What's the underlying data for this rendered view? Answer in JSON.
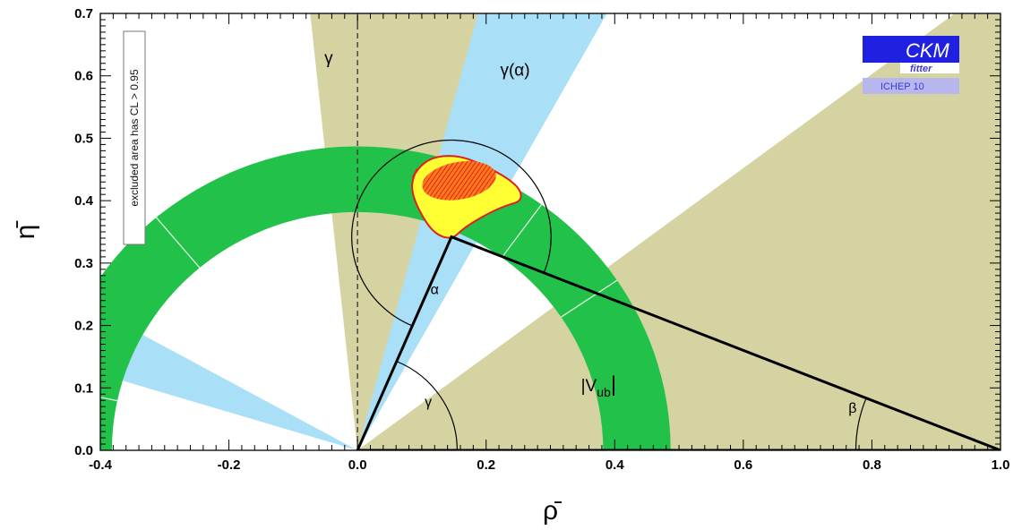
{
  "chart_data": {
    "type": "scatter",
    "title": "",
    "xlabel": "ρ̄",
    "ylabel": "η̄",
    "xlim": [
      -0.4,
      1.0
    ],
    "ylim": [
      0.0,
      0.7
    ],
    "x_ticks": [
      -0.4,
      -0.2,
      0.0,
      0.2,
      0.4,
      0.6,
      0.8,
      1.0
    ],
    "x_tick_labels": [
      "-0.4",
      "-0.2",
      "0.0",
      "0.2",
      "0.4",
      "0.6",
      "0.8",
      "1.0"
    ],
    "y_ticks": [
      0.0,
      0.1,
      0.2,
      0.3,
      0.4,
      0.5,
      0.6,
      0.7
    ],
    "y_tick_labels": [
      "0.0",
      "0.1",
      "0.2",
      "0.3",
      "0.4",
      "0.5",
      "0.6",
      "0.7"
    ],
    "apex": {
      "x": 0.146,
      "y": 0.342
    },
    "constraints": [
      {
        "label": "γ",
        "color": "#d6d3a3",
        "angles_deg": [
          66,
          96
        ],
        "angles2_deg": [
          0,
          37
        ]
      },
      {
        "label": "γ(α)",
        "color": "#a9e0f7",
        "angles_deg": [
          61,
          75
        ],
        "angles2_deg": [
          151,
          163
        ]
      },
      {
        "label": "|V",
        "sub": "ub",
        "color": "#22c24a",
        "radius_inner": 0.382,
        "radius_outer": 0.487
      }
    ],
    "angle_labels": [
      {
        "label": "α",
        "x": 0.12,
        "y": 0.25
      },
      {
        "label": "β",
        "x": 0.77,
        "y": 0.06
      },
      {
        "label": "γ",
        "x": 0.11,
        "y": 0.07
      }
    ],
    "annotations": {
      "excluded_note": "excluded area has CL > 0.95",
      "logo_main": "CKM",
      "logo_sub": "fitter",
      "logo_conf": "ICHEP 10"
    },
    "grid": false,
    "legend": "none"
  }
}
